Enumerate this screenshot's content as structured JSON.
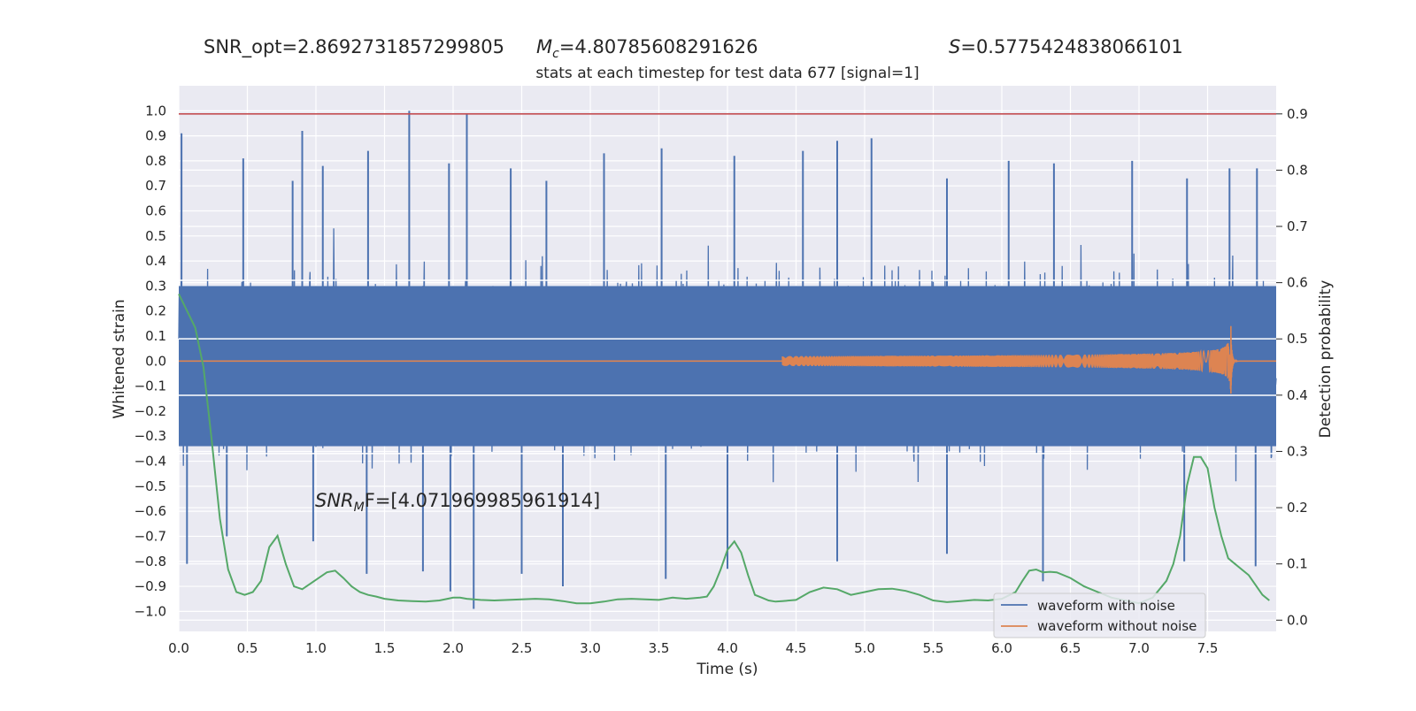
{
  "header": {
    "snr_opt": "SNR_opt=2.8692731857299805",
    "mc_symbol": "M",
    "mc_sub": "c",
    "mc_value": "=4.80785608291626",
    "s_symbol": "S",
    "s_value": "=0.5775424838066101"
  },
  "annotation": {
    "snr_symbol": "SNR",
    "snr_sub": "M",
    "snr_rest": "F=[4.071969985961914]"
  },
  "chart_data": {
    "type": "line",
    "title": "stats at each timestep for test data 677 [signal=1]",
    "xlabel": "Time (s)",
    "ylabel": "Whitened strain",
    "ylabel_right": "Detection probability",
    "xlim": [
      0,
      8
    ],
    "ylim": [
      -1.08,
      1.1
    ],
    "ylim_right": [
      -0.02,
      0.95
    ],
    "grid": true,
    "legend_position": "lower right",
    "x_ticks": [
      "0.0",
      "0.5",
      "1.0",
      "1.5",
      "2.0",
      "2.5",
      "3.0",
      "3.5",
      "4.0",
      "4.5",
      "5.0",
      "5.5",
      "6.0",
      "6.5",
      "7.0",
      "7.5"
    ],
    "y_ticks": [
      "1.0",
      "0.9",
      "0.8",
      "0.7",
      "0.6",
      "0.5",
      "0.4",
      "0.3",
      "0.2",
      "0.1",
      "0.0",
      "−0.1",
      "−0.2",
      "−0.3",
      "−0.4",
      "−0.5",
      "−0.6",
      "−0.7",
      "−0.8",
      "−0.9",
      "−1.0"
    ],
    "y_ticks_right": [
      "0.9",
      "0.8",
      "0.7",
      "0.6",
      "0.5",
      "0.4",
      "0.3",
      "0.2",
      "0.1",
      "0.0"
    ],
    "threshold": {
      "y": 0.9,
      "axis": "right",
      "color": "#c44e52"
    },
    "series": [
      {
        "name": "waveform with noise",
        "color": "#4c72b0",
        "description_envelope_p95": 0.45,
        "peak_points": [
          {
            "x": 0.02,
            "y": 0.91
          },
          {
            "x": 0.47,
            "y": 0.81
          },
          {
            "x": 0.83,
            "y": 0.72
          },
          {
            "x": 0.9,
            "y": 0.92
          },
          {
            "x": 1.05,
            "y": 0.78
          },
          {
            "x": 1.38,
            "y": 0.84
          },
          {
            "x": 1.68,
            "y": 1.0
          },
          {
            "x": 1.97,
            "y": 0.79
          },
          {
            "x": 2.1,
            "y": 0.99
          },
          {
            "x": 2.42,
            "y": 0.77
          },
          {
            "x": 2.68,
            "y": 0.72
          },
          {
            "x": 3.1,
            "y": 0.83
          },
          {
            "x": 3.52,
            "y": 0.85
          },
          {
            "x": 4.05,
            "y": 0.82
          },
          {
            "x": 4.55,
            "y": 0.84
          },
          {
            "x": 4.8,
            "y": 0.88
          },
          {
            "x": 5.05,
            "y": 0.89
          },
          {
            "x": 5.6,
            "y": 0.73
          },
          {
            "x": 6.05,
            "y": 0.8
          },
          {
            "x": 6.38,
            "y": 0.79
          },
          {
            "x": 6.95,
            "y": 0.8
          },
          {
            "x": 7.35,
            "y": 0.73
          },
          {
            "x": 7.66,
            "y": 0.77
          },
          {
            "x": 7.86,
            "y": 0.77
          },
          {
            "x": 0.06,
            "y": -0.81
          },
          {
            "x": 0.35,
            "y": -0.7
          },
          {
            "x": 0.98,
            "y": -0.72
          },
          {
            "x": 1.37,
            "y": -0.85
          },
          {
            "x": 1.78,
            "y": -0.84
          },
          {
            "x": 1.98,
            "y": -0.92
          },
          {
            "x": 2.15,
            "y": -0.99
          },
          {
            "x": 2.5,
            "y": -0.85
          },
          {
            "x": 2.8,
            "y": -0.9
          },
          {
            "x": 3.55,
            "y": -0.87
          },
          {
            "x": 4.0,
            "y": -0.83
          },
          {
            "x": 4.8,
            "y": -0.8
          },
          {
            "x": 5.6,
            "y": -0.77
          },
          {
            "x": 6.3,
            "y": -0.88
          },
          {
            "x": 7.33,
            "y": -0.8
          },
          {
            "x": 7.85,
            "y": -0.82
          }
        ]
      },
      {
        "name": "waveform without noise",
        "color": "#dd8452",
        "merger_time": 7.67,
        "peak_amplitude": 0.14,
        "min_amplitude": -0.13
      },
      {
        "name": "",
        "axis": "right",
        "color": "#55a868",
        "x": [
          0.0,
          0.06,
          0.12,
          0.18,
          0.24,
          0.3,
          0.36,
          0.42,
          0.48,
          0.54,
          0.6,
          0.66,
          0.72,
          0.78,
          0.84,
          0.9,
          0.96,
          1.02,
          1.08,
          1.14,
          1.2,
          1.26,
          1.32,
          1.38,
          1.44,
          1.5,
          1.6,
          1.7,
          1.8,
          1.9,
          2.0,
          2.05,
          2.1,
          2.2,
          2.3,
          2.4,
          2.5,
          2.6,
          2.7,
          2.8,
          2.9,
          3.0,
          3.1,
          3.2,
          3.3,
          3.4,
          3.5,
          3.6,
          3.7,
          3.8,
          3.85,
          3.9,
          3.95,
          4.0,
          4.05,
          4.1,
          4.15,
          4.2,
          4.25,
          4.3,
          4.35,
          4.4,
          4.5,
          4.6,
          4.7,
          4.8,
          4.9,
          5.0,
          5.1,
          5.2,
          5.3,
          5.4,
          5.5,
          5.6,
          5.7,
          5.8,
          5.9,
          6.0,
          6.1,
          6.15,
          6.2,
          6.25,
          6.3,
          6.35,
          6.4,
          6.5,
          6.6,
          6.7,
          6.8,
          6.9,
          7.0,
          7.1,
          7.2,
          7.25,
          7.3,
          7.35,
          7.4,
          7.45,
          7.5,
          7.55,
          7.6,
          7.65,
          7.7,
          7.8,
          7.9,
          7.95
        ],
        "y": [
          0.58,
          0.55,
          0.52,
          0.45,
          0.32,
          0.18,
          0.09,
          0.05,
          0.045,
          0.05,
          0.07,
          0.13,
          0.15,
          0.1,
          0.06,
          0.055,
          0.065,
          0.075,
          0.085,
          0.088,
          0.075,
          0.06,
          0.05,
          0.045,
          0.042,
          0.038,
          0.035,
          0.034,
          0.033,
          0.035,
          0.04,
          0.04,
          0.038,
          0.036,
          0.035,
          0.036,
          0.037,
          0.038,
          0.037,
          0.034,
          0.03,
          0.03,
          0.033,
          0.037,
          0.038,
          0.037,
          0.036,
          0.04,
          0.038,
          0.04,
          0.042,
          0.06,
          0.09,
          0.125,
          0.14,
          0.12,
          0.08,
          0.045,
          0.04,
          0.035,
          0.033,
          0.034,
          0.036,
          0.05,
          0.058,
          0.055,
          0.045,
          0.05,
          0.055,
          0.056,
          0.052,
          0.045,
          0.035,
          0.032,
          0.034,
          0.036,
          0.035,
          0.038,
          0.05,
          0.07,
          0.088,
          0.09,
          0.085,
          0.086,
          0.085,
          0.075,
          0.06,
          0.05,
          0.04,
          0.035,
          0.03,
          0.04,
          0.07,
          0.1,
          0.15,
          0.24,
          0.29,
          0.29,
          0.27,
          0.2,
          0.15,
          0.11,
          0.1,
          0.08,
          0.045,
          0.035
        ]
      }
    ]
  }
}
